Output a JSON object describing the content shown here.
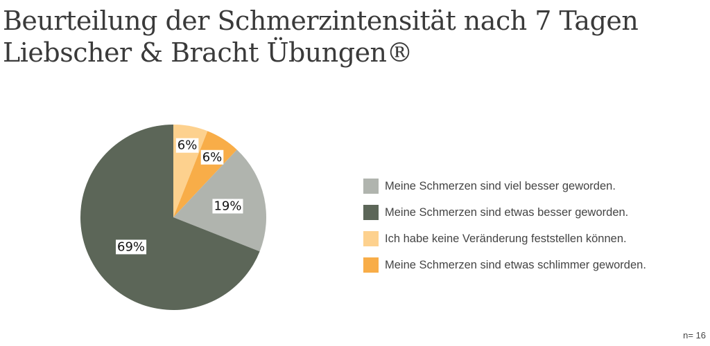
{
  "chart_data": {
    "type": "pie",
    "title_lines": [
      "Beurteilung der Schmerzintensität nach 7 Tagen",
      "Liebscher & Bracht Übungen®"
    ],
    "start": "top",
    "direction": "clockwise",
    "slices": [
      {
        "name": "Ich habe keine Veränderung feststellen können.",
        "value": 6,
        "label": "6%",
        "color": "#FDD18E"
      },
      {
        "name": "Meine Schmerzen sind etwas schlimmer geworden.",
        "value": 6,
        "label": "6%",
        "color": "#F8AD48"
      },
      {
        "name": "Meine Schmerzen sind viel besser geworden.",
        "value": 19,
        "label": "19%",
        "color": "#B0B4AE"
      },
      {
        "name": "Meine Schmerzen sind etwas besser geworden.",
        "value": 69,
        "label": "69%",
        "color": "#5C6658"
      }
    ],
    "legend": {
      "placement": "right",
      "order": [
        2,
        3,
        0,
        1
      ]
    },
    "note": "n= 16"
  }
}
